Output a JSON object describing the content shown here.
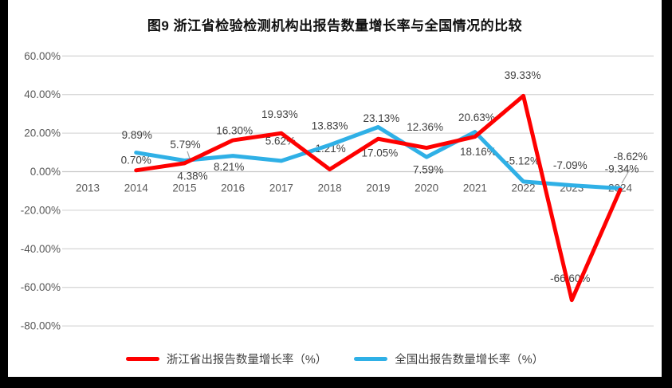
{
  "title": "图9  浙江省检验检测机构出报告数量增长率与全国情况的比较",
  "chart_data": {
    "type": "line",
    "title": "图9  浙江省检验检测机构出报告数量增长率与全国情况的比较",
    "categories": [
      "2013",
      "2014",
      "2015",
      "2016",
      "2017",
      "2018",
      "2019",
      "2020",
      "2021",
      "2022",
      "2023",
      "2024"
    ],
    "y_ticks": [
      "60.00%",
      "40.00%",
      "20.00%",
      "0.00%",
      "-20.00%",
      "-40.00%",
      "-60.00%",
      "-80.00%"
    ],
    "y_tick_values": [
      60,
      40,
      20,
      0,
      -20,
      -40,
      -60,
      -80
    ],
    "ylim": [
      -80,
      60
    ],
    "grid": true,
    "legend_position": "bottom",
    "series": [
      {
        "name": "浙江省出报告数量增长率（%）",
        "color": "#FE0000",
        "values": [
          null,
          0.7,
          4.38,
          16.3,
          19.93,
          1.21,
          17.05,
          12.36,
          18.16,
          39.33,
          -66.6,
          -9.34
        ],
        "labels": [
          "",
          "0.70%",
          "4.38%",
          "16.30%",
          "19.93%",
          "1.21%",
          "17.05%",
          "12.36%",
          "18.16%",
          "39.33%",
          "-66.60%",
          "-9.34%"
        ],
        "label_offsets": [
          [
            0,
            0
          ],
          [
            0,
            -13
          ],
          [
            10,
            16
          ],
          [
            2,
            -12
          ],
          [
            -2,
            -24
          ],
          [
            1,
            -26
          ],
          [
            2,
            18
          ],
          [
            -2,
            -26
          ],
          [
            4,
            19
          ],
          [
            -1,
            -26
          ],
          [
            -2,
            -27
          ],
          [
            2,
            -26
          ]
        ]
      },
      {
        "name": "全国出报告数量增长率（%）",
        "color": "#2FB0E6",
        "values": [
          null,
          9.89,
          5.79,
          8.21,
          5.62,
          13.83,
          23.13,
          7.59,
          20.63,
          -5.12,
          -7.09,
          -8.62
        ],
        "labels": [
          "",
          "9.89%",
          "5.79%",
          "8.21%",
          "5.62%",
          "13.83%",
          "23.13%",
          "7.59%",
          "20.63%",
          "-5.12%",
          "-7.09%",
          "-8.62%"
        ],
        "label_offsets": [
          [
            0,
            0
          ],
          [
            1,
            -22
          ],
          [
            1,
            -20
          ],
          [
            -5,
            14
          ],
          [
            -1,
            -25
          ],
          [
            0,
            -24
          ],
          [
            4,
            -11
          ],
          [
            2,
            16
          ],
          [
            2,
            -18
          ],
          [
            -1,
            -26
          ],
          [
            -2,
            -25
          ],
          [
            13,
            -40
          ]
        ]
      }
    ]
  },
  "colors": {
    "grid": "#D9D9D9",
    "zero_axis": "#C6C6C6",
    "tick_text": "#595959",
    "data_label": "#3F3F3F",
    "leader": "#A6A6A6",
    "background": "#FFFFFF",
    "edge": "#000000"
  }
}
